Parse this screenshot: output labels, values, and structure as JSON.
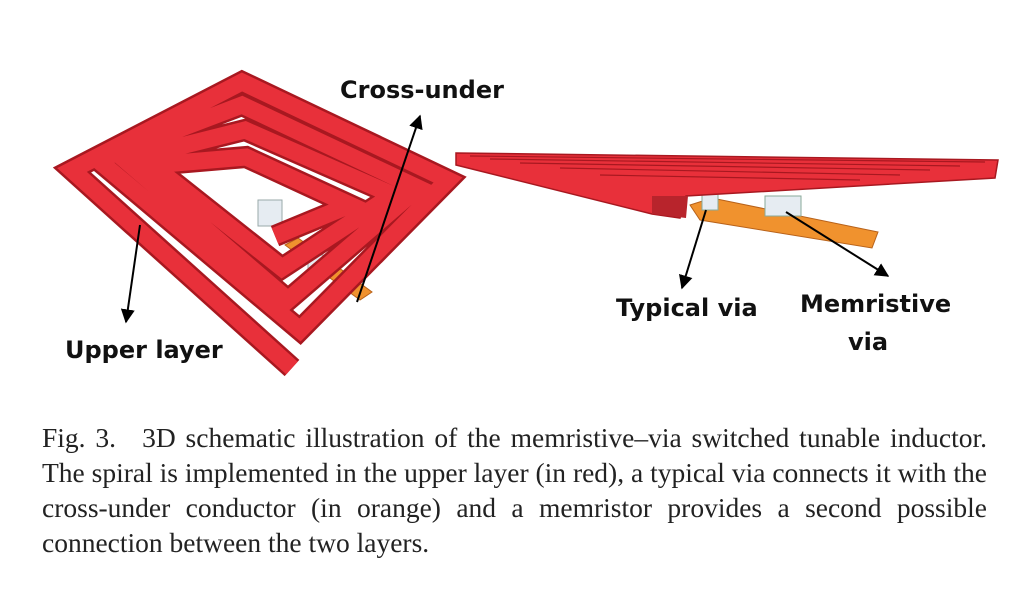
{
  "labels": {
    "cross_under": "Cross-under",
    "upper_layer": "Upper layer",
    "typical_via": "Typical via",
    "memristive_via_line1": "Memristive",
    "memristive_via_line2": "via"
  },
  "caption": {
    "fig_num": "Fig. 3.",
    "text": "3D schematic illustration of the memristive–via switched tunable inductor. The spiral is implemented in the upper layer (in red), a typical via connects it with the cross-under conductor (in orange) and a memristor provides a second possible connection between the two layers."
  },
  "colors": {
    "upper_layer": "#e8303a",
    "cross_under": "#f0922e",
    "via": "#e6ecf2"
  }
}
